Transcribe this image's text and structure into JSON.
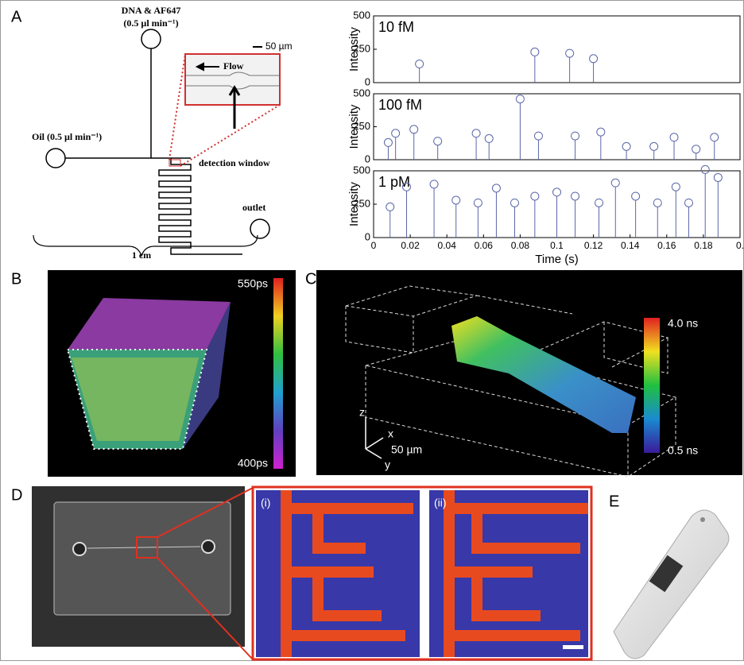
{
  "figure": {
    "panel_labels": [
      "A",
      "B",
      "C",
      "D",
      "E"
    ],
    "diagram": {
      "inlet_top": "DNA & AF647",
      "inlet_top_rate": "(0.5 µl min⁻¹)",
      "scale_bar": "50 µm",
      "flow": "Flow",
      "oil": "Oil (0.5 µl min⁻¹)",
      "detection": "detection window",
      "outlet": "outlet",
      "length": "1 cm"
    },
    "panel_b": {
      "top": "550ps",
      "bottom": "400ps"
    },
    "panel_c": {
      "top": "4.0 ns",
      "bottom": "0.5 ns",
      "z": "z",
      "x": "x",
      "y": "y",
      "scale": "50 µm"
    },
    "panel_d": {
      "left": "(i)",
      "right": "(ii)"
    }
  },
  "chart_data": [
    {
      "type": "scatter",
      "title": "10 fM",
      "ylabel": "Intensity",
      "color": "#5b67a8",
      "xlim": [
        0,
        0.2
      ],
      "ylim": [
        0,
        500
      ],
      "yticks": [
        0,
        250,
        500
      ],
      "x": [
        0.025,
        0.088,
        0.107,
        0.12
      ],
      "values": [
        110,
        200,
        190,
        150
      ]
    },
    {
      "type": "scatter",
      "title": "100 fM",
      "ylabel": "Intensity",
      "color": "#5b67a8",
      "xlim": [
        0,
        0.2
      ],
      "ylim": [
        0,
        500
      ],
      "yticks": [
        0,
        250,
        500
      ],
      "x": [
        0.008,
        0.012,
        0.022,
        0.035,
        0.056,
        0.063,
        0.08,
        0.09,
        0.11,
        0.124,
        0.138,
        0.153,
        0.164,
        0.176,
        0.186
      ],
      "values": [
        100,
        170,
        200,
        110,
        170,
        130,
        430,
        150,
        150,
        180,
        70,
        70,
        140,
        50,
        140
      ]
    },
    {
      "type": "scatter",
      "title": "1 pM",
      "ylabel": "Intensity",
      "xlabel": "Time (s)",
      "color": "#5b67a8",
      "xlim": [
        0,
        0.2
      ],
      "ylim": [
        0,
        500
      ],
      "yticks": [
        0,
        250,
        500
      ],
      "xticks": [
        0,
        0.02,
        0.04,
        0.06,
        0.08,
        0.1,
        0.12,
        0.14,
        0.16,
        0.18,
        {
          "value": 0.2,
          "label": "0."
        }
      ],
      "x": [
        0.009,
        0.018,
        0.033,
        0.045,
        0.057,
        0.067,
        0.077,
        0.088,
        0.1,
        0.11,
        0.123,
        0.132,
        0.143,
        0.155,
        0.165,
        0.172,
        0.181,
        0.188
      ],
      "values": [
        200,
        350,
        370,
        250,
        230,
        340,
        230,
        280,
        310,
        280,
        230,
        380,
        280,
        230,
        350,
        230,
        480,
        420
      ]
    }
  ]
}
